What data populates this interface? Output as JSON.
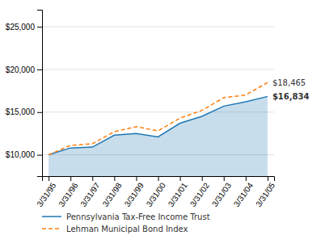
{
  "chart_data": {
    "type": "line",
    "categories": [
      "3/31/95",
      "3/31/96",
      "3/31/97",
      "3/31/98",
      "3/31/99",
      "3/31/00",
      "3/31/01",
      "3/31/02",
      "3/31/03",
      "3/31/04",
      "3/31/05"
    ],
    "series": [
      {
        "name": "Pennsylvania Tax-Free Income Trust",
        "type": "area",
        "line_style": "solid",
        "values": [
          10000,
          10800,
          10900,
          12300,
          12500,
          12100,
          13700,
          14500,
          15700,
          16200,
          16834
        ]
      },
      {
        "name": "Lehman Municipal Bond Index",
        "type": "line",
        "line_style": "dashed",
        "values": [
          10000,
          11100,
          11300,
          12700,
          13300,
          12800,
          14300,
          15200,
          16700,
          17000,
          18465
        ]
      }
    ],
    "ylim": [
      7500,
      27000
    ],
    "yticks": [
      {
        "value": 10000,
        "label": "$10,000"
      },
      {
        "value": 15000,
        "label": "$15,000"
      },
      {
        "value": 20000,
        "label": "$20,000"
      },
      {
        "value": 25000,
        "label": "$25,000"
      }
    ],
    "annotations": [
      "$16,834",
      "$18,465"
    ],
    "grid": true,
    "legend": "bottom"
  }
}
